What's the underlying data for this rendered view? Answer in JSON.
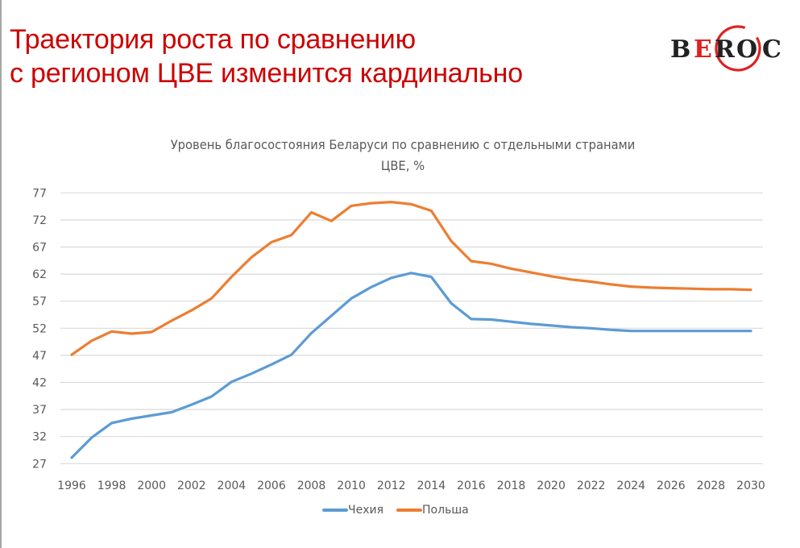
{
  "slide": {
    "title_line1": "Траектория роста по сравнению",
    "title_line2": "с регионом ЦВЕ изменится кардинально",
    "title_color": "#cc0000"
  },
  "logo": {
    "letters": [
      "B",
      "E",
      "R",
      "O",
      "C"
    ],
    "text": "BEROC",
    "accent_color": "#e02020",
    "text_color": "#222222"
  },
  "chart_data": {
    "type": "line",
    "title_line1": "Уровень благосостояния Беларуси по сравнению с отдельными странами",
    "title_line2": "ЦВЕ, %",
    "xlabel": "",
    "ylabel": "",
    "x": [
      1996,
      1997,
      1998,
      1999,
      2000,
      2001,
      2002,
      2003,
      2004,
      2005,
      2006,
      2007,
      2008,
      2009,
      2010,
      2011,
      2012,
      2013,
      2014,
      2015,
      2016,
      2017,
      2018,
      2019,
      2020,
      2021,
      2022,
      2023,
      2024,
      2025,
      2026,
      2027,
      2028,
      2029,
      2030
    ],
    "x_tick_labels": [
      "1996",
      "1998",
      "2000",
      "2002",
      "2004",
      "2006",
      "2008",
      "2010",
      "2012",
      "2014",
      "2016",
      "2018",
      "2020",
      "2022",
      "2024",
      "2026",
      "2028",
      "2030"
    ],
    "y_tick_labels": [
      "77",
      "72",
      "67",
      "62",
      "57",
      "52",
      "47",
      "42",
      "37",
      "32",
      "27"
    ],
    "ylim": [
      27,
      77
    ],
    "xlim": [
      1996,
      2030
    ],
    "grid": "horizontal",
    "legend_position": "bottom",
    "series": [
      {
        "name": "Чехия",
        "color": "#5b9bd5",
        "values": [
          28.1,
          31.8,
          34.5,
          35.3,
          35.9,
          36.5,
          37.9,
          39.4,
          42.1,
          43.6,
          45.3,
          47.1,
          51.1,
          54.3,
          57.5,
          59.6,
          61.3,
          62.2,
          61.5,
          56.6,
          53.7,
          53.6,
          53.2,
          52.8,
          52.5,
          52.2,
          52.0,
          51.7,
          51.5,
          51.5,
          51.5,
          51.5,
          51.5,
          51.5,
          51.5
        ]
      },
      {
        "name": "Польша",
        "color": "#ed7d31",
        "values": [
          47.1,
          49.7,
          51.4,
          51.0,
          51.3,
          53.4,
          55.3,
          57.5,
          61.5,
          65.1,
          67.9,
          69.2,
          73.4,
          71.8,
          74.6,
          75.1,
          75.3,
          74.9,
          73.7,
          68.1,
          64.4,
          63.9,
          63.0,
          62.3,
          61.6,
          61.0,
          60.6,
          60.1,
          59.7,
          59.5,
          59.4,
          59.3,
          59.2,
          59.2,
          59.1
        ]
      }
    ]
  }
}
